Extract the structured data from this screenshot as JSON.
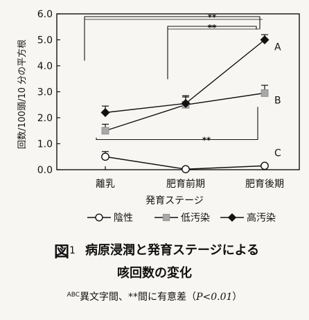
{
  "chart_data": {
    "type": "line",
    "categories": [
      "離乳",
      "肥育前期",
      "肥育後期"
    ],
    "ylabel": "回数/100頭/10 分の平方根",
    "xlabel": "発育ステージ",
    "ylim": [
      0,
      6
    ],
    "yticks": [
      "0.0",
      "1.0",
      "2.0",
      "3.0",
      "4.0",
      "5.0",
      "6.0"
    ],
    "grid": false,
    "legend_position": "bottom",
    "series": [
      {
        "name": "陰性",
        "marker": "open-circle",
        "color": "#ffffff",
        "values": [
          0.5,
          0.02,
          0.15
        ],
        "errors": [
          0.2,
          0,
          0
        ]
      },
      {
        "name": "低汚染",
        "marker": "gray-square",
        "color": "#a8a8a8",
        "values": [
          1.5,
          2.5,
          2.95
        ],
        "errors": [
          0.25,
          0.3,
          0.3
        ]
      },
      {
        "name": "高汚染",
        "marker": "black-diamond",
        "color": "#111111",
        "values": [
          2.2,
          2.55,
          5.0
        ],
        "errors": [
          0.25,
          0.3,
          0.2
        ]
      }
    ],
    "point_labels": [
      "A",
      "B",
      "C"
    ],
    "significance": [
      {
        "from": 0,
        "to": 2,
        "series": "高汚染",
        "text": "**"
      },
      {
        "from": 1,
        "to": 2,
        "series": "高汚染",
        "text": "**"
      },
      {
        "from": 0,
        "to": 2,
        "series": "低汚染",
        "text": "**"
      }
    ]
  },
  "caption": {
    "figure_label": "図",
    "figure_number": "1",
    "title_line1": "病原浸潤と発育ステージによる",
    "title_line2": "咳回数の変化",
    "note_sup": "ABC",
    "note_text": "異文字間、**間に有意差（",
    "note_p": "P<0.01",
    "note_close": "）"
  }
}
